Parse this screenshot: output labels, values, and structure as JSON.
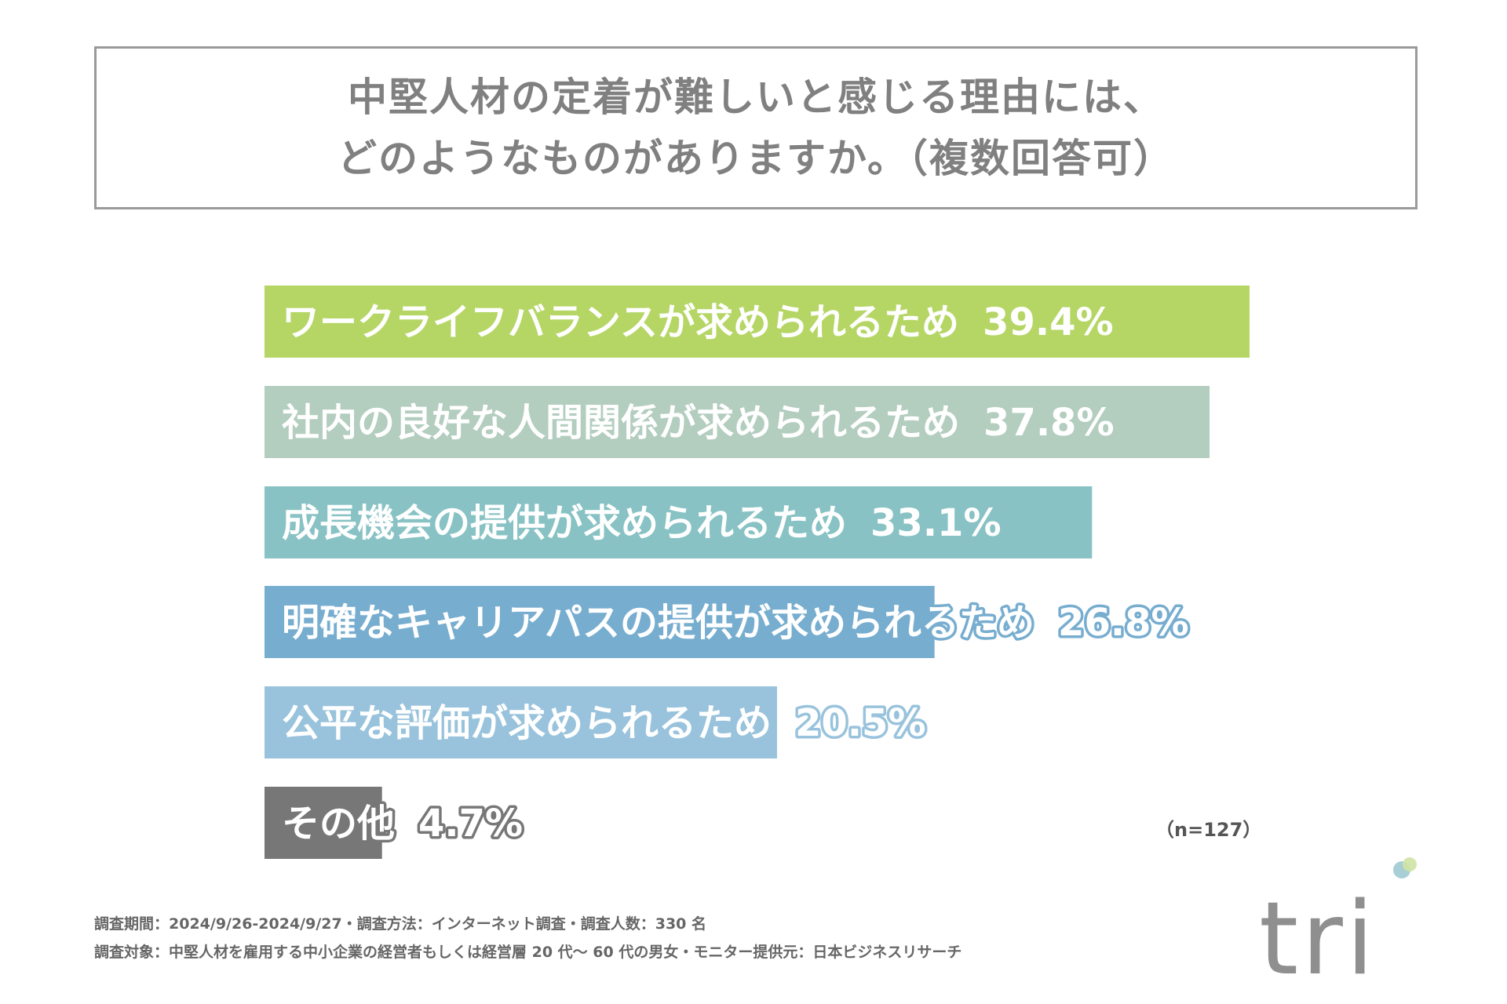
{
  "title": {
    "line1": "中堅人材の定着が難しいと感じる理由には、",
    "line2": "どのようなものがありますか。（複数回答可）"
  },
  "chart_data": {
    "type": "bar",
    "orientation": "horizontal",
    "categories": [
      "ワークライフバランスが求められるため",
      "社内の良好な人間関係が求められるため",
      "成長機会の提供が求められるため",
      "明確なキャリアパスの提供が求められるため",
      "公平な評価が求められるため",
      "その他"
    ],
    "values": [
      39.4,
      37.8,
      33.1,
      26.8,
      20.5,
      4.7
    ],
    "value_labels": [
      "39.4%",
      "37.8%",
      "33.1%",
      "26.8%",
      "20.5%",
      "4.7%"
    ],
    "colors": [
      "#b5d665",
      "#b3cdbf",
      "#88c2c4",
      "#77adcf",
      "#99c3dc",
      "#777777"
    ],
    "xlim": [
      0,
      39.4
    ]
  },
  "note": "（n=127）",
  "footnotes": [
    "調査期間：2024/9/26-2024/9/27・調査方法：インターネット調査・調査人数：330 名",
    "調査対象：中堅人材を雇用する中小企業の経営者もしくは経営層 20 代〜 60 代の男女・モニター提供元：日本ビジネスリサーチ"
  ],
  "logo": {
    "text": "tri",
    "dot_colors": [
      "#a8cfd6",
      "#cfe3a5"
    ]
  }
}
